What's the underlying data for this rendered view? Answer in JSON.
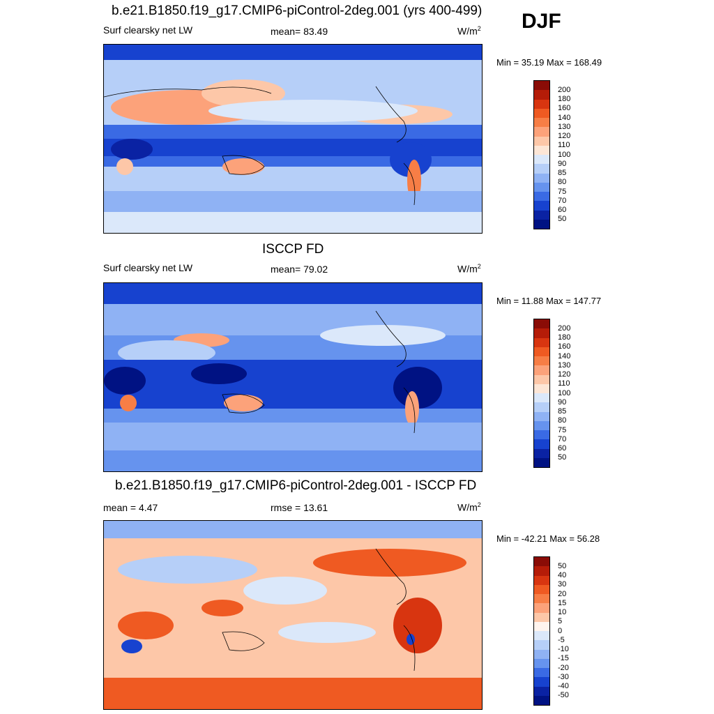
{
  "season": "DJF",
  "panels": [
    {
      "title": "b.e21.B1850.f19_g17.CMIP6-piControl-2deg.001 (yrs 400-499)",
      "variable": "Surf clearsky net LW",
      "stat_text": "mean=  83.49",
      "units": "W/m",
      "units_exp": "2",
      "minmax": "Min =  35.19 Max = 168.49",
      "colorbar": {
        "labels": [
          "200",
          "180",
          "160",
          "140",
          "130",
          "120",
          "110",
          "100",
          "90",
          "85",
          "80",
          "75",
          "70",
          "60",
          "50"
        ],
        "colors": [
          "#8a0c06",
          "#b51c08",
          "#d83510",
          "#ef5a22",
          "#f77e46",
          "#fca27a",
          "#fdc7a8",
          "#fde6d6",
          "#dbe8fa",
          "#b6cff8",
          "#8fb2f4",
          "#6693ee",
          "#3a6ae4",
          "#1742cf",
          "#0a22a3",
          "#001283"
        ]
      }
    },
    {
      "title": "ISCCP FD",
      "variable": "Surf clearsky net LW",
      "stat_text": "mean=  79.02",
      "units": "W/m",
      "units_exp": "2",
      "minmax": "Min =  11.88 Max = 147.77",
      "colorbar": {
        "labels": [
          "200",
          "180",
          "160",
          "140",
          "130",
          "120",
          "110",
          "100",
          "90",
          "85",
          "80",
          "75",
          "70",
          "60",
          "50"
        ],
        "colors": [
          "#8a0c06",
          "#b51c08",
          "#d83510",
          "#ef5a22",
          "#f77e46",
          "#fca27a",
          "#fdc7a8",
          "#fde6d6",
          "#dbe8fa",
          "#b6cff8",
          "#8fb2f4",
          "#6693ee",
          "#3a6ae4",
          "#1742cf",
          "#0a22a3",
          "#001283"
        ]
      }
    },
    {
      "title": "b.e21.B1850.f19_g17.CMIP6-piControl-2deg.001 - ISCCP FD",
      "variable": "mean =   4.47",
      "stat_text": "rmse =  13.61",
      "units": "W/m",
      "units_exp": "2",
      "minmax": "Min = -42.21 Max =  56.28",
      "colorbar": {
        "labels": [
          "50",
          "40",
          "30",
          "20",
          "15",
          "10",
          "5",
          "0",
          "-5",
          "-10",
          "-15",
          "-20",
          "-30",
          "-40",
          "-50"
        ],
        "colors": [
          "#8a0c06",
          "#b51c08",
          "#d83510",
          "#ef5a22",
          "#f77e46",
          "#fca27a",
          "#fdc7a8",
          "#fff4ee",
          "#dbe8fa",
          "#b6cff8",
          "#8fb2f4",
          "#6693ee",
          "#3a6ae4",
          "#1742cf",
          "#0a22a3",
          "#001283"
        ]
      }
    }
  ]
}
